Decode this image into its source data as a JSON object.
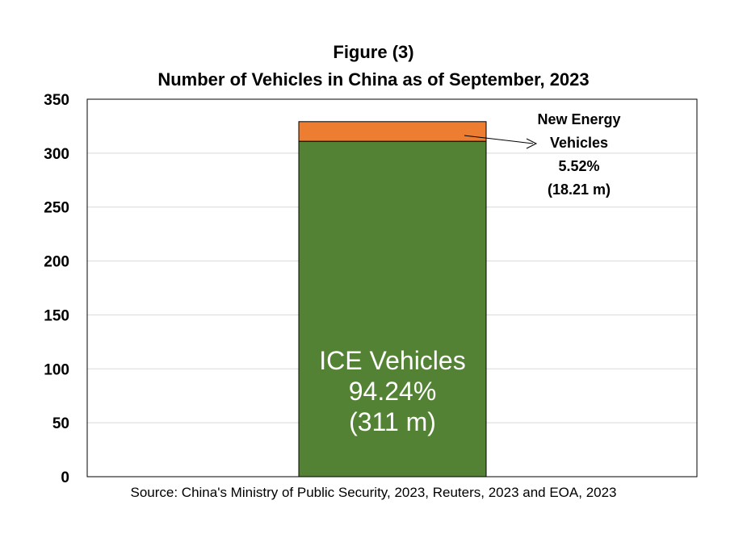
{
  "chart_data": {
    "type": "bar",
    "stacked": true,
    "title": "Figure (3)",
    "subtitle": "Number of Vehicles in China as of September, 2023",
    "ylim": [
      0,
      350
    ],
    "yticks": [
      0,
      50,
      100,
      150,
      200,
      250,
      300,
      350
    ],
    "grid": true,
    "categories": [
      ""
    ],
    "series": [
      {
        "name": "ICE Vehicles",
        "values": [
          311
        ],
        "color": "#548235",
        "label_lines": [
          "ICE Vehicles",
          "94.24%",
          "(311 m)"
        ]
      },
      {
        "name": "New Energy Vehicles",
        "values": [
          18.21
        ],
        "color": "#ED7D31",
        "label_lines": [
          "New Energy",
          "Vehicles",
          "5.52%",
          "(18.21 m)"
        ]
      }
    ],
    "source": "Source:  China's Ministry of Public Security, 2023, Reuters, 2023 and EOA, 2023"
  }
}
